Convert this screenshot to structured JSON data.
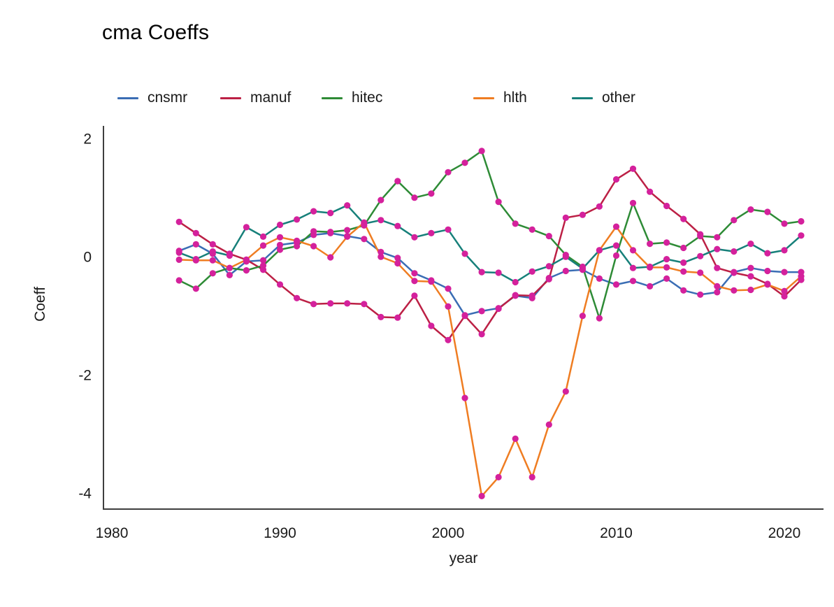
{
  "chart_data": {
    "type": "line",
    "title": "cma Coeffs",
    "xlabel": "year",
    "ylabel": "Coeff",
    "legend_position": "top",
    "grid": false,
    "axis_color": "#3f3f3f",
    "tick_label_color": "#1a1a1a",
    "point_color": "#d4219c",
    "x_ticks": [
      1980,
      1990,
      2000,
      2010,
      2020
    ],
    "y_ticks": [
      2,
      0,
      -2,
      -4
    ],
    "xlim": [
      1979.5,
      2022.33
    ],
    "ylim": [
      -4.27,
      2.215
    ],
    "x": [
      1984,
      1985,
      1986,
      1987,
      1988,
      1989,
      1990,
      1991,
      1992,
      1993,
      1994,
      1995,
      1996,
      1997,
      1998,
      1999,
      2000,
      2001,
      2002,
      2003,
      2004,
      2005,
      2006,
      2007,
      2008,
      2009,
      2010,
      2011,
      2012,
      2013,
      2014,
      2015,
      2016,
      2017,
      2018,
      2019,
      2020,
      2021
    ],
    "series": [
      {
        "name": "cnsmr",
        "color": "#3a6db4",
        "values": [
          0.1,
          0.21,
          0.05,
          -0.31,
          -0.08,
          -0.06,
          0.2,
          0.24,
          0.37,
          0.4,
          0.35,
          0.3,
          0.08,
          -0.02,
          -0.28,
          -0.4,
          -0.54,
          -0.99,
          -0.92,
          -0.87,
          -0.66,
          -0.7,
          -0.36,
          -0.24,
          -0.22,
          -0.37,
          -0.47,
          -0.41,
          -0.5,
          -0.37,
          -0.57,
          -0.64,
          -0.6,
          -0.26,
          -0.19,
          -0.24,
          -0.26,
          -0.26
        ]
      },
      {
        "name": "manuf",
        "color": "#bc2045",
        "values": [
          0.59,
          0.4,
          0.21,
          0.05,
          -0.05,
          -0.22,
          -0.47,
          -0.7,
          -0.8,
          -0.79,
          -0.79,
          -0.8,
          -1.02,
          -1.03,
          -0.66,
          -1.17,
          -1.41,
          -1.0,
          -1.31,
          -0.88,
          -0.65,
          -0.66,
          -0.38,
          0.66,
          0.71,
          0.85,
          1.31,
          1.49,
          1.1,
          0.86,
          0.64,
          0.38,
          -0.19,
          -0.27,
          -0.33,
          -0.46,
          -0.67,
          -0.39
        ]
      },
      {
        "name": "hitec",
        "color": "#2e8b36",
        "values": [
          -0.4,
          -0.54,
          -0.28,
          -0.19,
          -0.23,
          -0.15,
          0.12,
          0.18,
          0.43,
          0.42,
          0.45,
          0.53,
          0.96,
          1.28,
          1.0,
          1.07,
          1.43,
          1.59,
          1.79,
          0.93,
          0.56,
          0.46,
          0.35,
          0.03,
          -0.17,
          -1.04,
          0.02,
          0.91,
          0.22,
          0.24,
          0.15,
          0.35,
          0.33,
          0.62,
          0.8,
          0.76,
          0.56,
          0.6
        ]
      },
      {
        "name": "hlth",
        "color": "#ef7d22",
        "values": [
          -0.05,
          -0.06,
          -0.06,
          -0.19,
          -0.05,
          0.19,
          0.33,
          0.27,
          0.18,
          -0.01,
          0.34,
          0.58,
          0.0,
          -0.11,
          -0.41,
          -0.42,
          -0.84,
          -2.39,
          -4.05,
          -3.73,
          -3.08,
          -3.73,
          -2.84,
          -2.28,
          -1.0,
          0.11,
          0.51,
          0.11,
          -0.18,
          -0.18,
          -0.25,
          -0.27,
          -0.5,
          -0.57,
          -0.56,
          -0.47,
          -0.58,
          -0.33
        ]
      },
      {
        "name": "other",
        "color": "#17807a",
        "values": [
          0.07,
          -0.04,
          0.09,
          0.02,
          0.5,
          0.34,
          0.54,
          0.63,
          0.77,
          0.74,
          0.87,
          0.56,
          0.62,
          0.52,
          0.33,
          0.4,
          0.46,
          0.05,
          -0.26,
          -0.27,
          -0.43,
          -0.25,
          -0.16,
          0.0,
          -0.2,
          0.11,
          0.19,
          -0.19,
          -0.17,
          -0.04,
          -0.1,
          0.01,
          0.13,
          0.09,
          0.22,
          0.06,
          0.11,
          0.36
        ]
      }
    ]
  }
}
